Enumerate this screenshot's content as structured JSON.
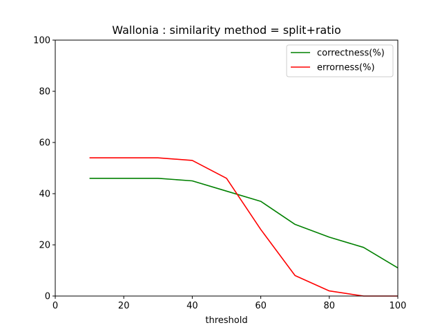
{
  "chart_data": {
    "type": "line",
    "title": "Wallonia : similarity method = split+ratio",
    "xlabel": "threshold",
    "ylabel": "",
    "xlim": [
      0,
      100
    ],
    "ylim": [
      0,
      100
    ],
    "xticks": [
      0,
      20,
      40,
      60,
      80,
      100
    ],
    "yticks": [
      0,
      20,
      40,
      60,
      80,
      100
    ],
    "grid": false,
    "legend_position": "top-right",
    "x": [
      10,
      20,
      30,
      40,
      50,
      60,
      70,
      80,
      90,
      100
    ],
    "series": [
      {
        "name": "correctness(%)",
        "color": "#008000",
        "values": [
          46,
          46,
          46,
          45,
          41,
          37,
          28,
          23,
          19,
          11
        ]
      },
      {
        "name": "errorness(%)",
        "color": "#ff0000",
        "values": [
          54,
          54,
          54,
          53,
          46,
          26,
          8,
          2,
          0,
          0
        ]
      }
    ]
  }
}
